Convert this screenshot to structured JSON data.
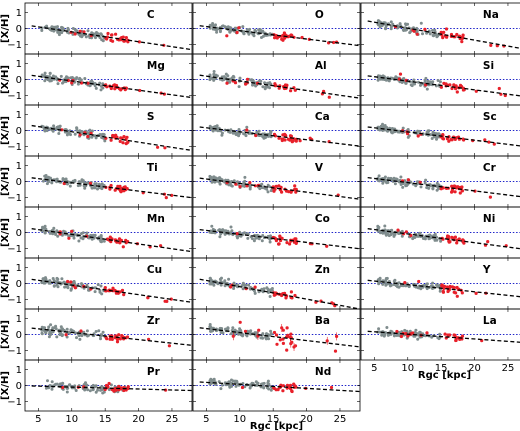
{
  "chart_data": {
    "type": "scatter",
    "xlabel": "Rgc [kpc]",
    "ylabel": "[X/H]",
    "xlim": [
      3,
      28
    ],
    "ylim": [
      -1.6,
      1.6
    ],
    "xticks": [
      5,
      10,
      15,
      20,
      25
    ],
    "yticks": [
      -1,
      0,
      1
    ],
    "reference_line_y": 0,
    "colors": {
      "field_stars": "#7f8c8d",
      "clusters": "#e8202a",
      "fit_line": "#000000",
      "reference_line": "#1f24c9"
    },
    "panels": [
      {
        "element": "C",
        "fit": {
          "slope": -0.062,
          "intercept": 0.41
        }
      },
      {
        "element": "O",
        "fit": {
          "slope": -0.052,
          "intercept": 0.38
        }
      },
      {
        "element": "Na",
        "fit": {
          "slope": -0.075,
          "intercept": 0.77
        }
      },
      {
        "element": "Mg",
        "fit": {
          "slope": -0.058,
          "intercept": 0.49
        }
      },
      {
        "element": "Al",
        "fit": {
          "slope": -0.06,
          "intercept": 0.51
        }
      },
      {
        "element": "Si",
        "fit": {
          "slope": -0.055,
          "intercept": 0.45
        }
      },
      {
        "element": "S",
        "fit": {
          "slope": -0.065,
          "intercept": 0.57
        }
      },
      {
        "element": "Ca",
        "fit": {
          "slope": -0.05,
          "intercept": 0.42
        }
      },
      {
        "element": "Sc",
        "fit": {
          "slope": -0.052,
          "intercept": 0.43
        }
      },
      {
        "element": "Ti",
        "fit": {
          "slope": -0.052,
          "intercept": 0.44
        }
      },
      {
        "element": "V",
        "fit": {
          "slope": -0.055,
          "intercept": 0.43
        }
      },
      {
        "element": "Cr",
        "fit": {
          "slope": -0.052,
          "intercept": 0.45
        }
      },
      {
        "element": "Mn",
        "fit": {
          "slope": -0.06,
          "intercept": 0.48
        }
      },
      {
        "element": "Co",
        "fit": {
          "slope": -0.05,
          "intercept": 0.38
        }
      },
      {
        "element": "Ni",
        "fit": {
          "slope": -0.055,
          "intercept": 0.46
        }
      },
      {
        "element": "Cu",
        "fit": {
          "slope": -0.06,
          "intercept": 0.5
        }
      },
      {
        "element": "Zn",
        "fit": {
          "slope": -0.078,
          "intercept": 0.58
        }
      },
      {
        "element": "Y",
        "fit": {
          "slope": -0.045,
          "intercept": 0.38
        }
      },
      {
        "element": "Zr",
        "fit": {
          "slope": -0.045,
          "intercept": 0.58
        }
      },
      {
        "element": "Ba",
        "fit": {
          "slope": -0.05,
          "intercept": 0.62
        }
      },
      {
        "element": "La",
        "fit": {
          "slope": -0.03,
          "intercept": 0.32
        }
      },
      {
        "element": "Pr",
        "fit": {
          "slope": -0.012,
          "intercept": 0.02
        }
      },
      {
        "element": "Nd",
        "fit": {
          "slope": -0.025,
          "intercept": 0.32
        }
      }
    ]
  }
}
